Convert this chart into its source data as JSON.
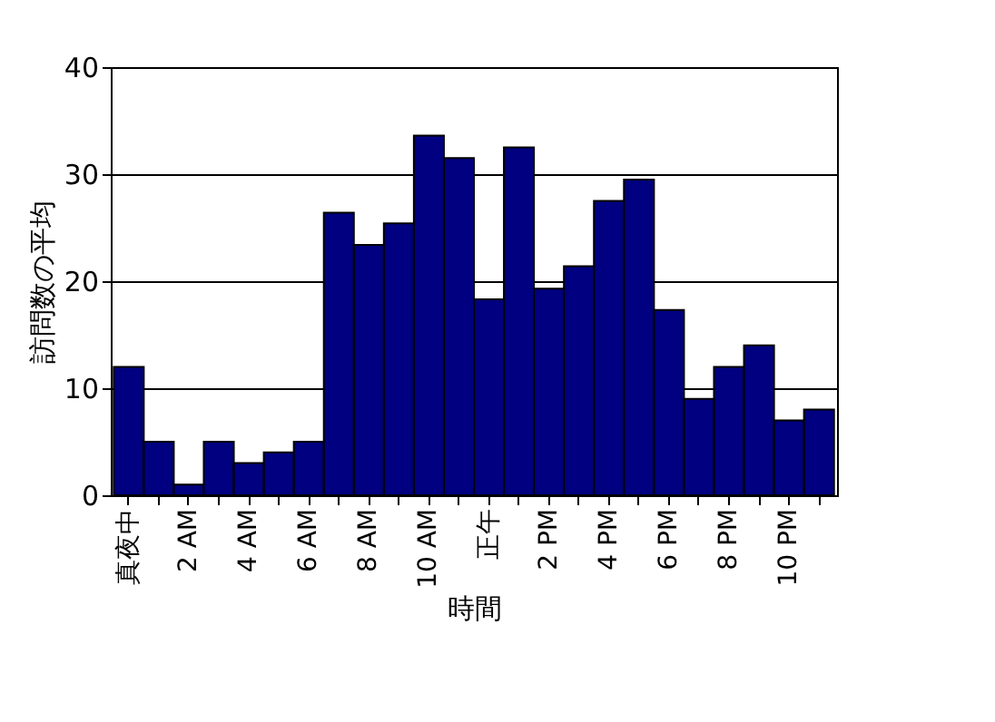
{
  "chart_data": {
    "type": "bar",
    "xlabel": "時間",
    "ylabel": "訪問数の平均",
    "categories": [
      "真夜中",
      null,
      "2 AM",
      null,
      "4 AM",
      null,
      "6 AM",
      null,
      "8 AM",
      null,
      "10 AM",
      null,
      "正午",
      null,
      "2 PM",
      null,
      "4 PM",
      null,
      "6 PM",
      null,
      "8 PM",
      null,
      "10 PM",
      null
    ],
    "values": [
      12,
      5,
      1,
      5,
      3,
      4,
      5,
      26.4,
      23.4,
      25.4,
      33.6,
      31.5,
      18.3,
      32.5,
      19.3,
      21.4,
      27.5,
      29.5,
      17.3,
      9,
      12,
      14,
      7,
      8
    ],
    "color": "#000080",
    "ylim": [
      0,
      40
    ],
    "yticks": [
      0,
      10,
      20,
      30,
      40
    ],
    "grid": "y"
  }
}
